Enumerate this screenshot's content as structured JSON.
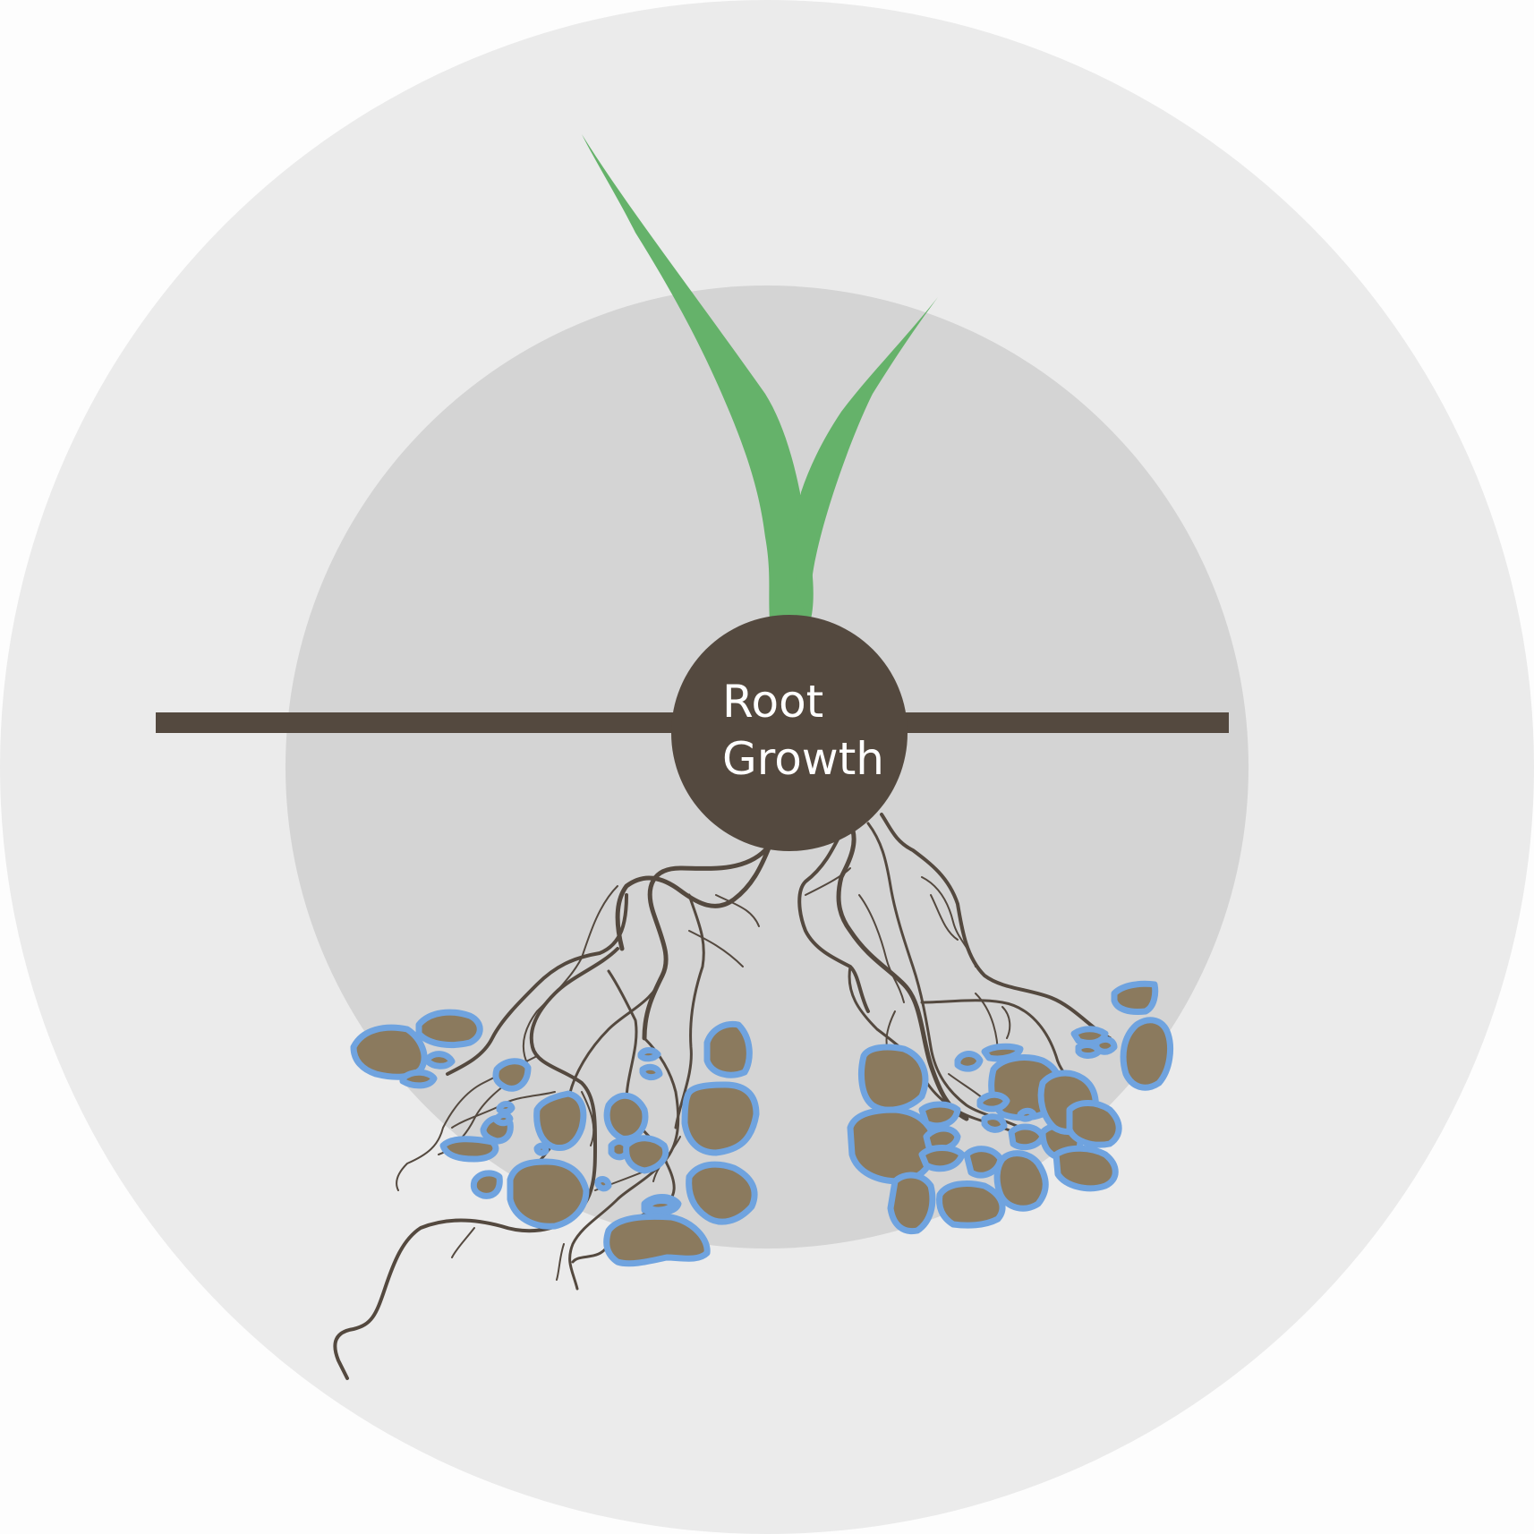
{
  "diagram": {
    "label_lines": [
      "Root",
      "Growth"
    ],
    "colors": {
      "outer_circle": "#ebebeb",
      "inner_circle": "#d4d4d4",
      "ground_line": "#54493f",
      "center_node": "#54493f",
      "leaf": "#65b26a",
      "root": "#54493f",
      "soil_clump_fill": "#8b7a5e",
      "soil_clump_outline": "#6fa3df",
      "label_text": "#ffffff"
    },
    "icons": [
      "seedling-leaf-icon",
      "root-system-icon",
      "soil-clump-icon"
    ]
  }
}
